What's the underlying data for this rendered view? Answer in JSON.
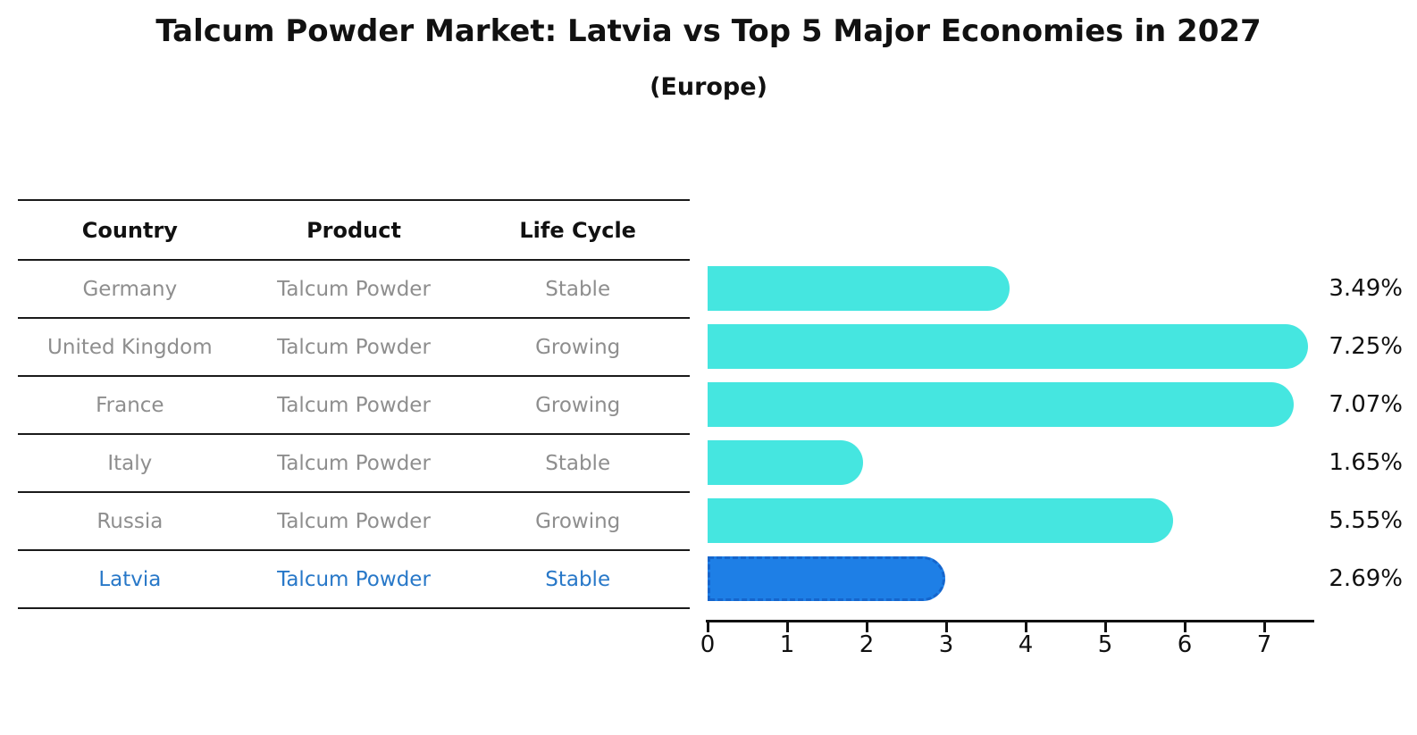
{
  "title": "Talcum Powder Market: Latvia vs Top 5 Major Economies in 2027",
  "subtitle": "(Europe)",
  "table": {
    "columns": [
      "Country",
      "Product",
      "Life Cycle"
    ],
    "rows": [
      {
        "country": "Germany",
        "product": "Talcum Powder",
        "life_cycle": "Stable",
        "highlighted": false
      },
      {
        "country": "United Kingdom",
        "product": "Talcum Powder",
        "life_cycle": "Growing",
        "highlighted": false
      },
      {
        "country": "France",
        "product": "Talcum Powder",
        "life_cycle": "Growing",
        "highlighted": false
      },
      {
        "country": "Italy",
        "product": "Talcum Powder",
        "life_cycle": "Stable",
        "highlighted": false
      },
      {
        "country": "Russia",
        "product": "Talcum Powder",
        "life_cycle": "Growing",
        "highlighted": false
      },
      {
        "country": "Latvia",
        "product": "Talcum Powder",
        "life_cycle": "Stable",
        "highlighted": true
      }
    ]
  },
  "chart_data": {
    "type": "bar",
    "orientation": "horizontal",
    "title": "Talcum Powder Market: Latvia vs Top 5 Major Economies in 2027",
    "subtitle": "(Europe)",
    "categories": [
      "Germany",
      "United Kingdom",
      "France",
      "Italy",
      "Russia",
      "Latvia"
    ],
    "values": [
      3.49,
      7.25,
      7.07,
      1.65,
      5.55,
      2.69
    ],
    "value_labels": [
      "3.49%",
      "7.25%",
      "7.07%",
      "1.65%",
      "5.55%",
      "2.69%"
    ],
    "xlabel": "",
    "ylabel": "",
    "xlim": [
      0,
      7.6
    ],
    "xticks": [
      0,
      1,
      2,
      3,
      4,
      5,
      6,
      7
    ],
    "grid": false,
    "legend": false,
    "highlighted_category": "Latvia",
    "colors": {
      "bar_default": "#45e6e0",
      "bar_highlight": "#1e7fe6",
      "bar_highlight_border": "#1565cc",
      "row_text": "#8e8e8e",
      "highlight_text": "#2878c8",
      "axis_text": "#111111"
    }
  }
}
